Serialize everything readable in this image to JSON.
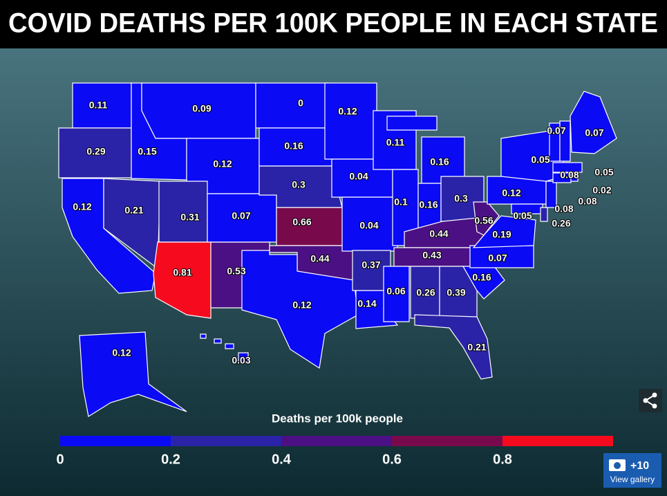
{
  "chart_data": {
    "type": "choropleth",
    "title": "COVID DEATHS PER 100K PEOPLE IN EACH STATE",
    "values": [
      0.11,
      0.29,
      0.12,
      0.21,
      0.15,
      0.09,
      0.12,
      0.31,
      0.07,
      0.81,
      0.53,
      0,
      0.16,
      0.3,
      0.66,
      0.44,
      0.12,
      0.12,
      0.04,
      0.04,
      0.37,
      0.14,
      0.11,
      0.1,
      0.16,
      0.16,
      0.3,
      0.44,
      0.43,
      0.06,
      0.26,
      0.39,
      0.21,
      0.16,
      0.07,
      0.19,
      0.56,
      0.12,
      0.05,
      0.05,
      0.26,
      0.08,
      0.08,
      0.02,
      0.05,
      0.07,
      0.08,
      0.07,
      0.12,
      0.03
    ],
    "legend": {
      "title": "Deaths per 100k people",
      "lim": [
        0,
        1
      ],
      "ticks": [
        0,
        0.2,
        0.4,
        0.6,
        0.8
      ],
      "colors": [
        "#0a0af5",
        "#2a23a8",
        "#4b1184",
        "#780a4c",
        "#f50a1e"
      ]
    }
  },
  "ui": {
    "gallery_count": "+10",
    "gallery_label": "View gallery"
  }
}
